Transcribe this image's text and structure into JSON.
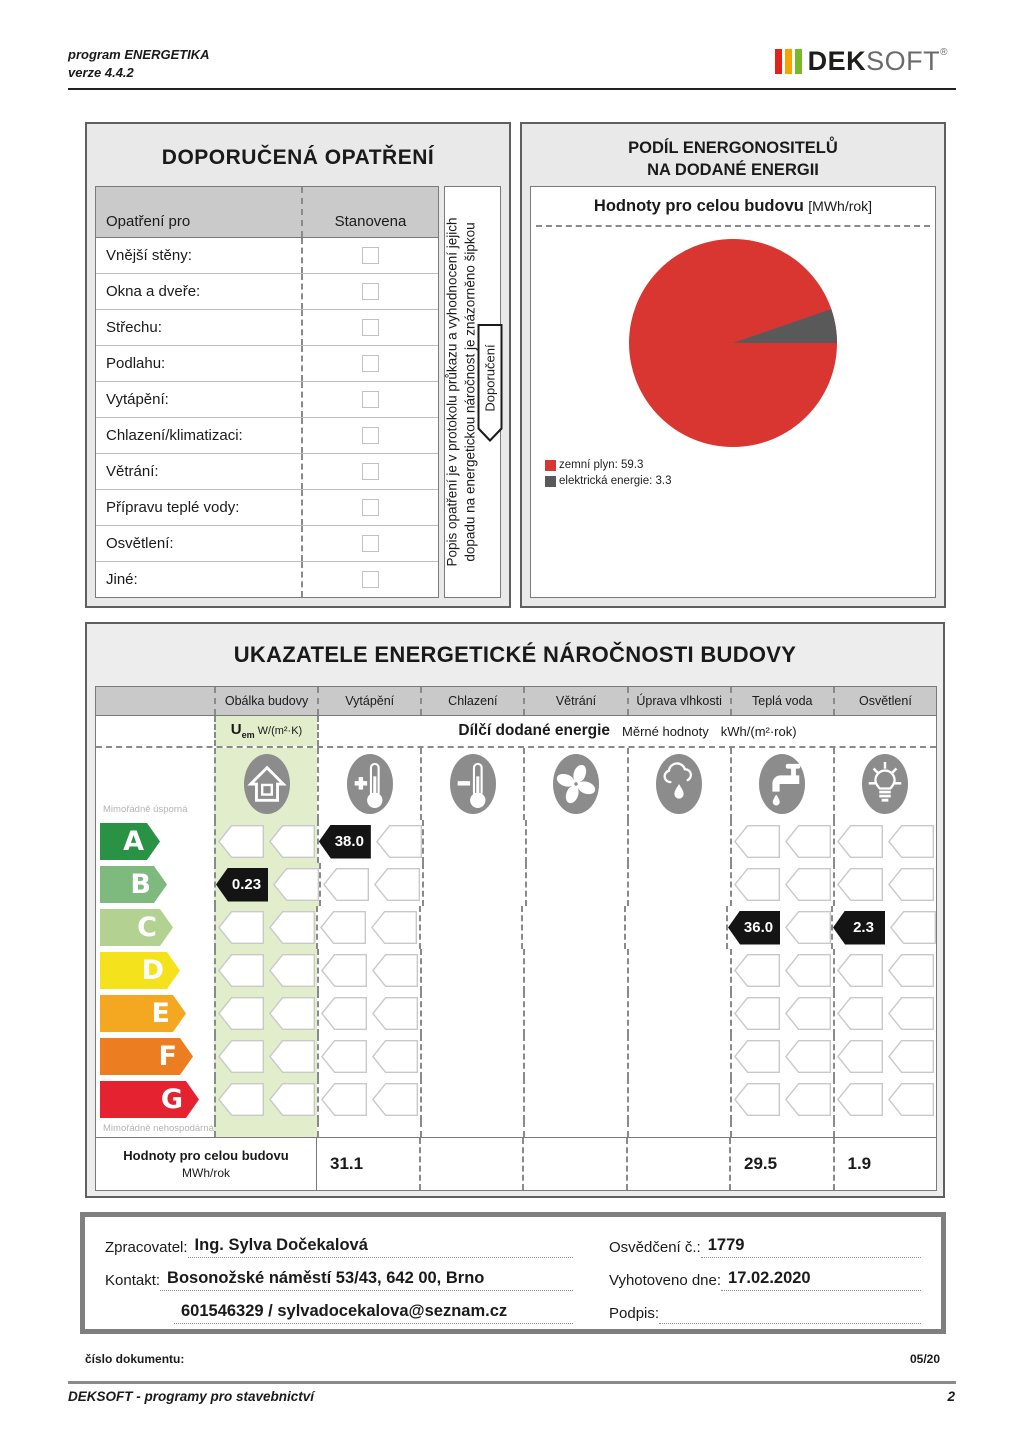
{
  "page_header": {
    "program_name": "program ENERGETIKA",
    "program_version": "verze 4.4.2",
    "logo_dek": "DEK",
    "logo_soft": "SOFT",
    "logo_reg": "®",
    "logo_bar_colors": [
      "#e2231a",
      "#f6a500",
      "#79b928"
    ]
  },
  "measures": {
    "title": "DOPORUČENÁ OPATŘENÍ",
    "col1": "Opatření pro",
    "col2": "Stanovena",
    "rows": [
      "Vnější stěny:",
      "Okna a dveře:",
      "Střechu:",
      "Podlahu:",
      "Vytápění:",
      "Chlazení/klimatizaci:",
      "Větrání:",
      "Přípravu teplé vody:",
      "Osvětlení:",
      "Jiné:"
    ],
    "side_note_line1": "Popis opatření je v protokolu průkazu a vyhodnocení jejich",
    "side_note_line2": "dopadu na energetickou náročnost je znázorněno šipkou",
    "tag": "Doporučení"
  },
  "energy_share": {
    "title_line1": "PODÍL ENERGONOSITELŮ",
    "title_line2": "NA DODANÉ ENERGII",
    "subtitle": "Hodnoty pro celou budovu",
    "subtitle_unit": "[MWh/rok]",
    "legend": [
      {
        "display": "zemní plyn: 59.3",
        "color": "#d93531"
      },
      {
        "display": "elektrická energie: 3.3",
        "color": "#595959"
      }
    ]
  },
  "chart_data": {
    "type": "pie",
    "title": "PODÍL ENERGONOSITELŮ NA DODANÉ ENERGII",
    "subtitle": "Hodnoty pro celou budovu",
    "unit": "MWh/rok",
    "slices": [
      {
        "label": "zemní plyn",
        "value": 59.3,
        "color": "#d93531"
      },
      {
        "label": "elektrická energie",
        "value": 3.3,
        "color": "#595959"
      }
    ],
    "legend_position": "bottom-left"
  },
  "indicators": {
    "title": "UKAZATELE ENERGETICKÉ NÁROČNOSTI BUDOVY",
    "columns": [
      "Obálka budovy",
      "Vytápění",
      "Chlazení",
      "Větrání",
      "Úprava vlhkosti",
      "Teplá voda",
      "Osvětlení"
    ],
    "column_icons": [
      "house-icon",
      "heating-icon",
      "cooling-icon",
      "fan-icon",
      "humidity-icon",
      "water-icon",
      "lighting-icon"
    ],
    "uem_symbol": "U",
    "uem_sub": "em",
    "uem_unit": "W/(m²·K)",
    "subheader_bold": "Dílčí dodané energie",
    "subheader_mid": "Měrné hodnoty",
    "subheader_unit": "kWh/(m²·rok)",
    "scale_top": "Mimořádně úsporná",
    "scale_bottom": "Mimořádně nehospodárná",
    "grades": [
      {
        "letter": "A",
        "color": "#2a9244"
      },
      {
        "letter": "B",
        "color": "#7eb97e"
      },
      {
        "letter": "C",
        "color": "#b3d291"
      },
      {
        "letter": "D",
        "color": "#f4e21d"
      },
      {
        "letter": "E",
        "color": "#f4a821"
      },
      {
        "letter": "F",
        "color": "#ec7d21"
      },
      {
        "letter": "G",
        "color": "#e52330"
      }
    ],
    "columns_with_arrows": [
      0,
      1,
      5,
      6
    ],
    "badges": [
      {
        "col": 0,
        "row": 1,
        "value": "0.23"
      },
      {
        "col": 1,
        "row": 0,
        "value": "38.0"
      },
      {
        "col": 5,
        "row": 2,
        "value": "36.0"
      },
      {
        "col": 6,
        "row": 2,
        "value": "2.3"
      }
    ],
    "totals_label": "Hodnoty pro celou budovu",
    "totals_unit": "MWh/rok",
    "totals_values": [
      "31.1",
      "",
      "",
      "",
      "29.5",
      "1.9"
    ]
  },
  "certificate": {
    "zpracovatel_label": "Zpracovatel:",
    "zpracovatel_value": "Ing. Sylva Dočekalová",
    "kontakt_label": "Kontakt:",
    "kontakt_value1": "Bosonožské náměstí 53/43, 642 00, Brno",
    "kontakt_value2": "601546329 / sylvadocekalova@seznam.cz",
    "osvedceni_label": "Osvědčení č.:",
    "osvedceni_value": "1779",
    "vyhotoveno_label": "Vyhotoveno dne:",
    "vyhotoveno_value": "17.02.2020",
    "podpis_label": "Podpis:",
    "podpis_value": ""
  },
  "page_footer": {
    "doc_label": "číslo dokumentu:",
    "doc_number": "05/20",
    "brand_line": "DEKSOFT - programy pro stavebnictví",
    "page_number": "2"
  }
}
